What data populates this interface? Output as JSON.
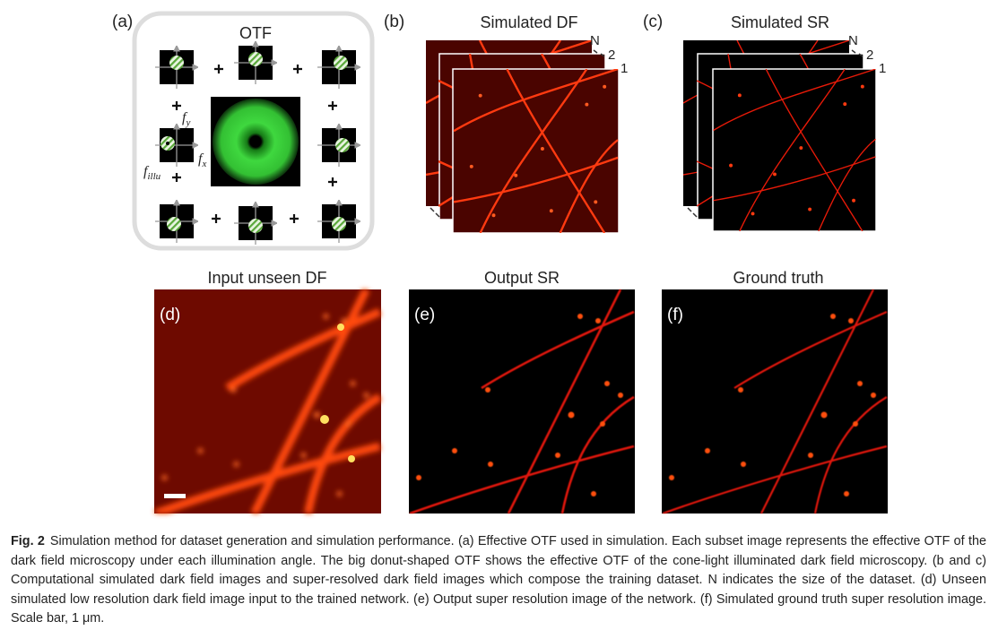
{
  "panel_a": {
    "label": "(a)",
    "title": "OTF",
    "fy": {
      "base": "f",
      "sub": "y"
    },
    "fx": {
      "base": "f",
      "sub": "x"
    },
    "fillu": {
      "base": "f",
      "sub": "illu"
    }
  },
  "panel_b": {
    "label": "(b)",
    "title": "Simulated DF",
    "stack_labels": [
      "N",
      "2",
      "1"
    ]
  },
  "panel_c": {
    "label": "(c)",
    "title": "Simulated SR",
    "stack_labels": [
      "N",
      "2",
      "1"
    ]
  },
  "panel_d": {
    "label": "(d)",
    "title": "Input unseen DF"
  },
  "panel_e": {
    "label": "(e)",
    "title": "Output SR"
  },
  "panel_f": {
    "label": "(f)",
    "title": "Ground truth"
  },
  "caption": {
    "figure_label": "Fig. 2",
    "text": "Simulation method for dataset generation and simulation performance. (a) Effective OTF used in simulation. Each subset image represents the effective OTF of the dark field microscopy under each illumination angle. The big donut-shaped OTF shows the effective OTF of the cone-light illuminated dark field microscopy. (b and c) Computational simulated dark field images and super-resolved dark field images which compose the training dataset. N indicates the size of the dataset. (d) Unseen simulated low resolution dark field image input to the trained network. (e) Output super resolution image of the network. (f) Simulated ground truth super resolution image. Scale bar, 1 μm."
  }
}
